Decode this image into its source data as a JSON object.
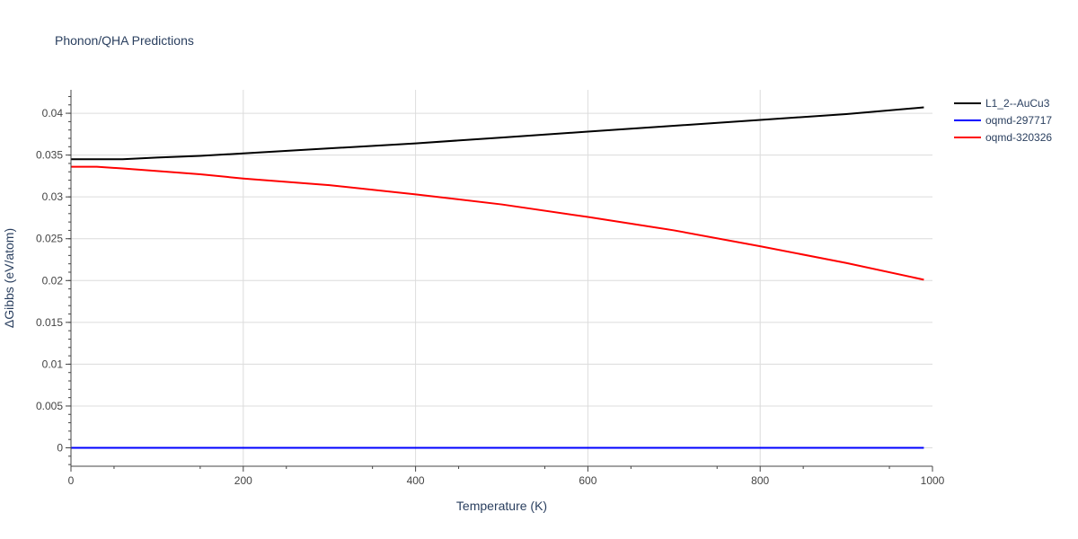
{
  "chart_data": {
    "type": "line",
    "title": "Phonon/QHA Predictions",
    "xlabel": "Temperature (K)",
    "ylabel": "ΔGibbs (eV/atom)",
    "xlim": [
      0,
      1000
    ],
    "ylim": [
      -0.0022,
      0.0428
    ],
    "x_ticks": [
      0,
      200,
      400,
      600,
      800,
      1000
    ],
    "x_tick_labels": [
      "0",
      "200",
      "400",
      "600",
      "800",
      "1000"
    ],
    "y_ticks": [
      0,
      0.005,
      0.01,
      0.015,
      0.02,
      0.025,
      0.03,
      0.035,
      0.04
    ],
    "y_tick_labels": [
      "0",
      "0.005",
      "0.01",
      "0.015",
      "0.02",
      "0.025",
      "0.03",
      "0.035",
      "0.04"
    ],
    "grid": true,
    "legend_position": "top-right",
    "series": [
      {
        "name": "L1_2--AuCu3",
        "color": "#000000",
        "x": [
          0,
          30,
          60,
          100,
          150,
          200,
          300,
          400,
          500,
          600,
          700,
          800,
          900,
          990
        ],
        "y": [
          0.0345,
          0.0345,
          0.0345,
          0.0347,
          0.0349,
          0.0352,
          0.0358,
          0.0364,
          0.0371,
          0.0378,
          0.0385,
          0.0392,
          0.0399,
          0.0407
        ]
      },
      {
        "name": "oqmd-297717",
        "color": "#0000ff",
        "x": [
          0,
          990
        ],
        "y": [
          0,
          0
        ]
      },
      {
        "name": "oqmd-320326",
        "color": "#ff0000",
        "x": [
          0,
          30,
          60,
          100,
          150,
          200,
          300,
          400,
          500,
          600,
          700,
          800,
          900,
          990
        ],
        "y": [
          0.0336,
          0.0336,
          0.0334,
          0.0331,
          0.0327,
          0.0322,
          0.0314,
          0.0303,
          0.0291,
          0.0276,
          0.026,
          0.0241,
          0.0221,
          0.0201
        ]
      }
    ]
  }
}
